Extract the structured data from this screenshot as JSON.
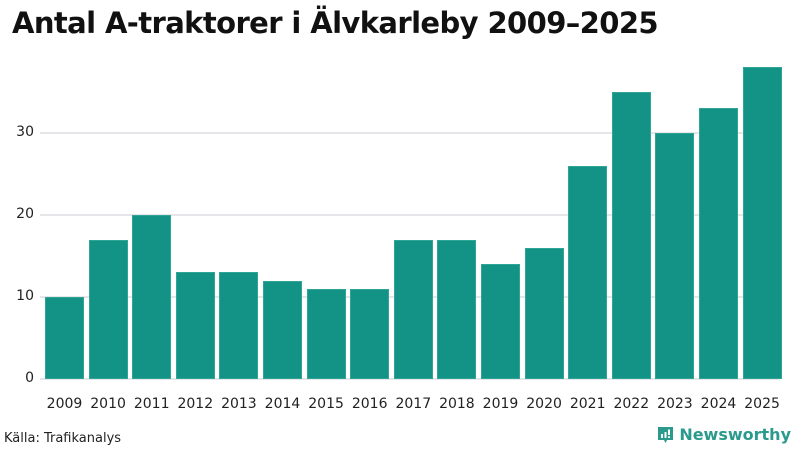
{
  "title": "Antal A-traktorer i Älvkarleby 2009–2025",
  "source": "Källa: Trafikanalys",
  "brand": {
    "name": "Newsworthy",
    "icon": "chart-speech-bubble-icon",
    "color": "#2a9a8c"
  },
  "colors": {
    "bar": "#139386",
    "grid": "#e6e6ea"
  },
  "y_ticks": [
    "0",
    "10",
    "20",
    "30"
  ],
  "chart_data": {
    "type": "bar",
    "title": "Antal A-traktorer i Älvkarleby 2009–2025",
    "xlabel": "",
    "ylabel": "",
    "categories": [
      "2009",
      "2010",
      "2011",
      "2012",
      "2013",
      "2014",
      "2015",
      "2016",
      "2017",
      "2018",
      "2019",
      "2020",
      "2021",
      "2022",
      "2023",
      "2024",
      "2025"
    ],
    "values": [
      10,
      17,
      20,
      13,
      13,
      12,
      11,
      11,
      17,
      17,
      14,
      16,
      26,
      35,
      30,
      33,
      38
    ],
    "ylim": [
      0,
      38
    ],
    "y_ticks": [
      0,
      10,
      20,
      30
    ],
    "grid": true,
    "legend": null,
    "source": "Källa: Trafikanalys"
  }
}
